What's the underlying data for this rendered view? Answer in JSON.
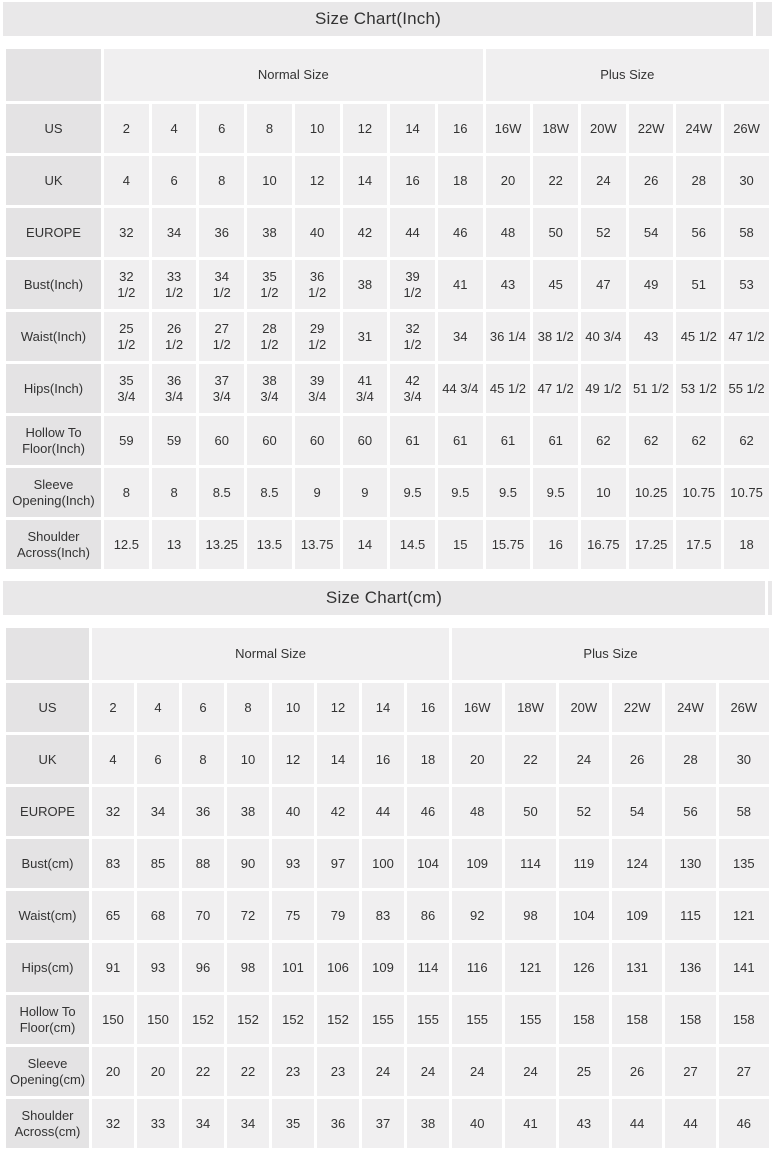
{
  "colors": {
    "title_bar_bg": "#e9e8e9",
    "header_label_bg": "#e4e3e4",
    "cell_bg": "#f0eff0",
    "gap": "#ffffff",
    "text": "#333333"
  },
  "chart_data": [
    {
      "type": "table",
      "title": "Size Chart(Inch)",
      "column_groups": [
        {
          "label": "Normal Size",
          "span": 8
        },
        {
          "label": "Plus Size",
          "span": 6
        }
      ],
      "rows": [
        {
          "label": "US",
          "values": [
            "2",
            "4",
            "6",
            "8",
            "10",
            "12",
            "14",
            "16",
            "16W",
            "18W",
            "20W",
            "22W",
            "24W",
            "26W"
          ]
        },
        {
          "label": "UK",
          "values": [
            "4",
            "6",
            "8",
            "10",
            "12",
            "14",
            "16",
            "18",
            "20",
            "22",
            "24",
            "26",
            "28",
            "30"
          ]
        },
        {
          "label": "EUROPE",
          "values": [
            "32",
            "34",
            "36",
            "38",
            "40",
            "42",
            "44",
            "46",
            "48",
            "50",
            "52",
            "54",
            "56",
            "58"
          ]
        },
        {
          "label": "Bust(Inch)",
          "values": [
            "32 1/2",
            "33 1/2",
            "34 1/2",
            "35 1/2",
            "36 1/2",
            "38",
            "39 1/2",
            "41",
            "43",
            "45",
            "47",
            "49",
            "51",
            "53"
          ]
        },
        {
          "label": "Waist(Inch)",
          "values": [
            "25 1/2",
            "26 1/2",
            "27 1/2",
            "28 1/2",
            "29 1/2",
            "31",
            "32 1/2",
            "34",
            "36 1/4",
            "38 1/2",
            "40 3/4",
            "43",
            "45 1/2",
            "47 1/2"
          ]
        },
        {
          "label": "Hips(Inch)",
          "values": [
            "35 3/4",
            "36 3/4",
            "37 3/4",
            "38 3/4",
            "39 3/4",
            "41 3/4",
            "42 3/4",
            "44 3/4",
            "45 1/2",
            "47 1/2",
            "49 1/2",
            "51 1/2",
            "53 1/2",
            "55 1/2"
          ]
        },
        {
          "label": "Hollow To Floor(Inch)",
          "values": [
            "59",
            "59",
            "60",
            "60",
            "60",
            "60",
            "61",
            "61",
            "61",
            "61",
            "62",
            "62",
            "62",
            "62"
          ]
        },
        {
          "label": "Sleeve Opening(Inch)",
          "values": [
            "8",
            "8",
            "8.5",
            "8.5",
            "9",
            "9",
            "9.5",
            "9.5",
            "9.5",
            "9.5",
            "10",
            "10.25",
            "10.75",
            "10.75"
          ]
        },
        {
          "label": "Shoulder Across(Inch)",
          "values": [
            "12.5",
            "13",
            "13.25",
            "13.5",
            "13.75",
            "14",
            "14.5",
            "15",
            "15.75",
            "16",
            "16.75",
            "17.25",
            "17.5",
            "18"
          ]
        }
      ]
    },
    {
      "type": "table",
      "title": "Size Chart(cm)",
      "column_groups": [
        {
          "label": "Normal Size",
          "span": 8
        },
        {
          "label": "Plus Size",
          "span": 6
        }
      ],
      "rows": [
        {
          "label": "US",
          "values": [
            "2",
            "4",
            "6",
            "8",
            "10",
            "12",
            "14",
            "16",
            "16W",
            "18W",
            "20W",
            "22W",
            "24W",
            "26W"
          ]
        },
        {
          "label": "UK",
          "values": [
            "4",
            "6",
            "8",
            "10",
            "12",
            "14",
            "16",
            "18",
            "20",
            "22",
            "24",
            "26",
            "28",
            "30"
          ]
        },
        {
          "label": "EUROPE",
          "values": [
            "32",
            "34",
            "36",
            "38",
            "40",
            "42",
            "44",
            "46",
            "48",
            "50",
            "52",
            "54",
            "56",
            "58"
          ]
        },
        {
          "label": "Bust(cm)",
          "values": [
            "83",
            "85",
            "88",
            "90",
            "93",
            "97",
            "100",
            "104",
            "109",
            "114",
            "119",
            "124",
            "130",
            "135"
          ]
        },
        {
          "label": "Waist(cm)",
          "values": [
            "65",
            "68",
            "70",
            "72",
            "75",
            "79",
            "83",
            "86",
            "92",
            "98",
            "104",
            "109",
            "115",
            "121"
          ]
        },
        {
          "label": "Hips(cm)",
          "values": [
            "91",
            "93",
            "96",
            "98",
            "101",
            "106",
            "109",
            "114",
            "116",
            "121",
            "126",
            "131",
            "136",
            "141"
          ]
        },
        {
          "label": "Hollow To Floor(cm)",
          "values": [
            "150",
            "150",
            "152",
            "152",
            "152",
            "152",
            "155",
            "155",
            "155",
            "155",
            "158",
            "158",
            "158",
            "158"
          ]
        },
        {
          "label": "Sleeve Opening(cm)",
          "values": [
            "20",
            "20",
            "22",
            "22",
            "23",
            "23",
            "24",
            "24",
            "24",
            "24",
            "25",
            "26",
            "27",
            "27"
          ]
        },
        {
          "label": "Shoulder Across(cm)",
          "values": [
            "32",
            "33",
            "34",
            "34",
            "35",
            "36",
            "37",
            "38",
            "40",
            "41",
            "43",
            "44",
            "44",
            "46"
          ]
        }
      ]
    }
  ]
}
